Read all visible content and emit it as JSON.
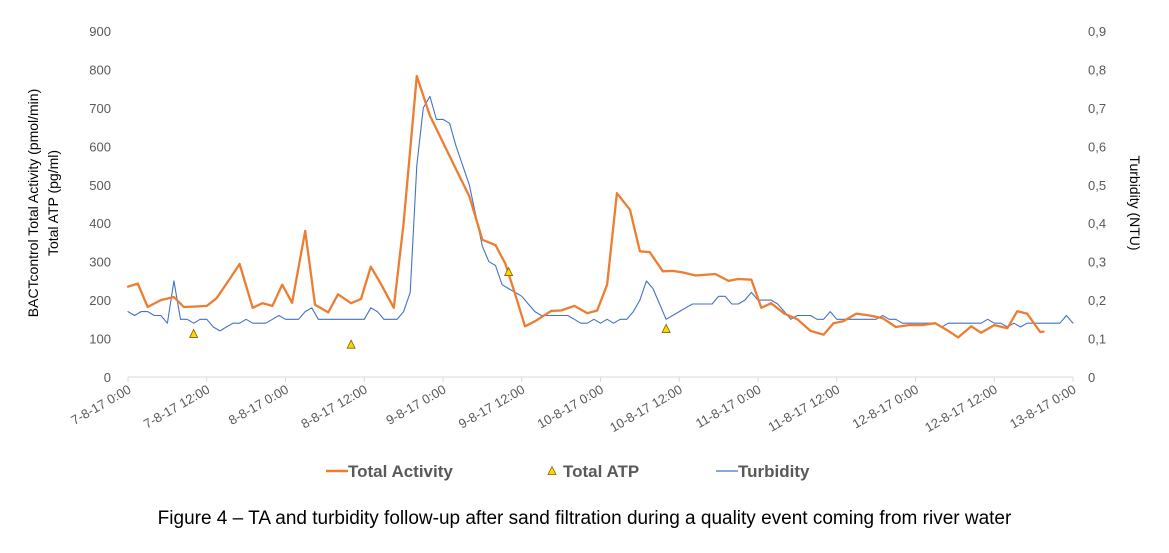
{
  "chart_data": {
    "type": "line",
    "x_tick_labels": [
      "7-8-17 0:00",
      "7-8-17 12:00",
      "8-8-17 0:00",
      "8-8-17 12:00",
      "9-8-17 0:00",
      "9-8-17 12:00",
      "10-8-17 0:00",
      "10-8-17 12:00",
      "11-8-17 0:00",
      "11-8-17 12:00",
      "12-8-17 0:00",
      "12-8-17 12:00",
      "13-8-17 0:00"
    ],
    "x_unit": "hours since 7-8-17 0:00",
    "xlim": [
      0,
      144
    ],
    "y_left_label_lines": [
      "BACTcontrol Total Activity (pmol/min)",
      "Total ATP (pg/ml)"
    ],
    "y_left_ticks": [
      "0",
      "100",
      "200",
      "300",
      "400",
      "500",
      "600",
      "700",
      "800",
      "900"
    ],
    "y_left_lim": [
      0,
      900
    ],
    "y_right_label": "Turbidity (NTU)",
    "y_right_ticks": [
      "0",
      "0,1",
      "0,2",
      "0,3",
      "0,4",
      "0,5",
      "0,6",
      "0,7",
      "0,8",
      "0,9"
    ],
    "y_right_lim": [
      0,
      0.9
    ],
    "legend_position": "bottom",
    "series": [
      {
        "name": "Total Activity",
        "axis": "left",
        "marker": "line",
        "color": "#ED7D31",
        "points": [
          [
            0,
            235
          ],
          [
            1.5,
            243
          ],
          [
            3,
            182
          ],
          [
            5,
            200
          ],
          [
            7,
            208
          ],
          [
            8.5,
            182
          ],
          [
            10,
            183
          ],
          [
            12,
            185
          ],
          [
            13.5,
            205
          ],
          [
            15.5,
            255
          ],
          [
            17,
            294
          ],
          [
            19,
            180
          ],
          [
            20.5,
            192
          ],
          [
            22,
            185
          ],
          [
            23.5,
            240
          ],
          [
            25,
            193
          ],
          [
            27,
            380
          ],
          [
            28.5,
            188
          ],
          [
            30.5,
            168
          ],
          [
            32,
            215
          ],
          [
            34,
            192
          ],
          [
            35.5,
            203
          ],
          [
            37,
            287
          ],
          [
            38.5,
            243
          ],
          [
            40.5,
            180
          ],
          [
            42,
            400
          ],
          [
            44,
            783
          ],
          [
            46,
            680
          ],
          [
            48,
            610
          ],
          [
            50,
            540
          ],
          [
            52,
            470
          ],
          [
            54,
            357
          ],
          [
            56,
            343
          ],
          [
            57.5,
            295
          ],
          [
            59,
            215
          ],
          [
            60.5,
            132
          ],
          [
            62,
            145
          ],
          [
            64.5,
            172
          ],
          [
            66,
            173
          ],
          [
            68,
            185
          ],
          [
            70,
            166
          ],
          [
            71.5,
            173
          ],
          [
            73,
            240
          ],
          [
            74.5,
            478
          ],
          [
            76.5,
            435
          ],
          [
            78,
            327
          ],
          [
            79.5,
            325
          ],
          [
            81.5,
            275
          ],
          [
            83,
            276
          ],
          [
            84.5,
            272
          ],
          [
            86.5,
            264
          ],
          [
            89.5,
            268
          ],
          [
            91.5,
            250
          ],
          [
            93,
            255
          ],
          [
            95,
            253
          ],
          [
            96.5,
            180
          ],
          [
            98,
            192
          ],
          [
            100,
            165
          ],
          [
            102,
            150
          ],
          [
            104,
            120
          ],
          [
            106,
            110
          ],
          [
            107.5,
            140
          ],
          [
            109,
            145
          ],
          [
            111,
            165
          ],
          [
            113,
            160
          ],
          [
            115,
            153
          ],
          [
            117,
            130
          ],
          [
            119,
            135
          ],
          [
            121,
            135
          ],
          [
            123,
            140
          ],
          [
            125,
            120
          ],
          [
            126.5,
            103
          ],
          [
            128.5,
            132
          ],
          [
            130,
            115
          ],
          [
            132,
            135
          ],
          [
            134,
            127
          ],
          [
            135.5,
            171
          ],
          [
            137,
            165
          ],
          [
            139,
            117
          ],
          [
            139.5,
            118
          ]
        ]
      },
      {
        "name": "Total ATP",
        "axis": "left",
        "marker": "triangle",
        "color": "#FFD700",
        "points": [
          [
            10,
            112
          ],
          [
            34,
            84
          ],
          [
            58,
            273
          ],
          [
            82,
            125
          ]
        ]
      },
      {
        "name": "Turbidity",
        "axis": "right",
        "marker": "line",
        "color": "#4472C4",
        "points": [
          [
            0,
            0.17
          ],
          [
            1,
            0.16
          ],
          [
            2,
            0.17
          ],
          [
            3,
            0.17
          ],
          [
            4,
            0.16
          ],
          [
            5,
            0.16
          ],
          [
            6,
            0.14
          ],
          [
            7,
            0.25
          ],
          [
            8,
            0.15
          ],
          [
            9,
            0.15
          ],
          [
            10,
            0.14
          ],
          [
            11,
            0.15
          ],
          [
            12,
            0.15
          ],
          [
            13,
            0.13
          ],
          [
            14,
            0.12
          ],
          [
            15,
            0.13
          ],
          [
            16,
            0.14
          ],
          [
            17,
            0.14
          ],
          [
            18,
            0.15
          ],
          [
            19,
            0.14
          ],
          [
            20,
            0.14
          ],
          [
            21,
            0.14
          ],
          [
            22,
            0.15
          ],
          [
            23,
            0.16
          ],
          [
            24,
            0.15
          ],
          [
            25,
            0.15
          ],
          [
            26,
            0.15
          ],
          [
            27,
            0.17
          ],
          [
            28,
            0.18
          ],
          [
            29,
            0.15
          ],
          [
            30,
            0.15
          ],
          [
            31,
            0.15
          ],
          [
            32,
            0.15
          ],
          [
            33,
            0.15
          ],
          [
            34,
            0.15
          ],
          [
            35,
            0.15
          ],
          [
            36,
            0.15
          ],
          [
            37,
            0.18
          ],
          [
            38,
            0.17
          ],
          [
            39,
            0.15
          ],
          [
            40,
            0.15
          ],
          [
            41,
            0.15
          ],
          [
            42,
            0.17
          ],
          [
            43,
            0.22
          ],
          [
            44,
            0.55
          ],
          [
            45,
            0.7
          ],
          [
            46,
            0.73
          ],
          [
            47,
            0.67
          ],
          [
            48,
            0.67
          ],
          [
            49,
            0.66
          ],
          [
            50,
            0.6
          ],
          [
            51,
            0.55
          ],
          [
            52,
            0.5
          ],
          [
            53,
            0.42
          ],
          [
            54,
            0.34
          ],
          [
            55,
            0.3
          ],
          [
            56,
            0.29
          ],
          [
            57,
            0.24
          ],
          [
            58,
            0.23
          ],
          [
            59,
            0.22
          ],
          [
            60,
            0.21
          ],
          [
            61,
            0.19
          ],
          [
            62,
            0.17
          ],
          [
            63,
            0.16
          ],
          [
            64,
            0.16
          ],
          [
            65,
            0.16
          ],
          [
            66,
            0.16
          ],
          [
            67,
            0.16
          ],
          [
            68,
            0.15
          ],
          [
            69,
            0.14
          ],
          [
            70,
            0.14
          ],
          [
            71,
            0.15
          ],
          [
            72,
            0.14
          ],
          [
            73,
            0.15
          ],
          [
            74,
            0.14
          ],
          [
            75,
            0.15
          ],
          [
            76,
            0.15
          ],
          [
            77,
            0.17
          ],
          [
            78,
            0.2
          ],
          [
            79,
            0.25
          ],
          [
            80,
            0.23
          ],
          [
            81,
            0.19
          ],
          [
            82,
            0.15
          ],
          [
            83,
            0.16
          ],
          [
            84,
            0.17
          ],
          [
            85,
            0.18
          ],
          [
            86,
            0.19
          ],
          [
            87,
            0.19
          ],
          [
            88,
            0.19
          ],
          [
            89,
            0.19
          ],
          [
            90,
            0.21
          ],
          [
            91,
            0.21
          ],
          [
            92,
            0.19
          ],
          [
            93,
            0.19
          ],
          [
            94,
            0.2
          ],
          [
            95,
            0.22
          ],
          [
            96,
            0.2
          ],
          [
            97,
            0.2
          ],
          [
            98,
            0.2
          ],
          [
            99,
            0.19
          ],
          [
            100,
            0.17
          ],
          [
            101,
            0.15
          ],
          [
            102,
            0.16
          ],
          [
            103,
            0.16
          ],
          [
            104,
            0.16
          ],
          [
            105,
            0.15
          ],
          [
            106,
            0.15
          ],
          [
            107,
            0.17
          ],
          [
            108,
            0.15
          ],
          [
            109,
            0.15
          ],
          [
            110,
            0.15
          ],
          [
            111,
            0.15
          ],
          [
            112,
            0.15
          ],
          [
            113,
            0.15
          ],
          [
            114,
            0.15
          ],
          [
            115,
            0.16
          ],
          [
            116,
            0.15
          ],
          [
            117,
            0.15
          ],
          [
            118,
            0.14
          ],
          [
            119,
            0.14
          ],
          [
            120,
            0.14
          ],
          [
            121,
            0.14
          ],
          [
            122,
            0.14
          ],
          [
            123,
            0.14
          ],
          [
            124,
            0.13
          ],
          [
            125,
            0.14
          ],
          [
            126,
            0.14
          ],
          [
            127,
            0.14
          ],
          [
            128,
            0.14
          ],
          [
            129,
            0.14
          ],
          [
            130,
            0.14
          ],
          [
            131,
            0.15
          ],
          [
            132,
            0.14
          ],
          [
            133,
            0.14
          ],
          [
            134,
            0.13
          ],
          [
            135,
            0.14
          ],
          [
            136,
            0.13
          ],
          [
            137,
            0.14
          ],
          [
            138,
            0.14
          ],
          [
            139,
            0.14
          ],
          [
            140,
            0.14
          ],
          [
            141,
            0.14
          ],
          [
            142,
            0.14
          ],
          [
            143,
            0.16
          ],
          [
            144,
            0.14
          ]
        ]
      }
    ],
    "gridlines": false
  },
  "caption": "Figure 4 – TA and turbidity follow-up after sand filtration during a quality event coming from river water"
}
